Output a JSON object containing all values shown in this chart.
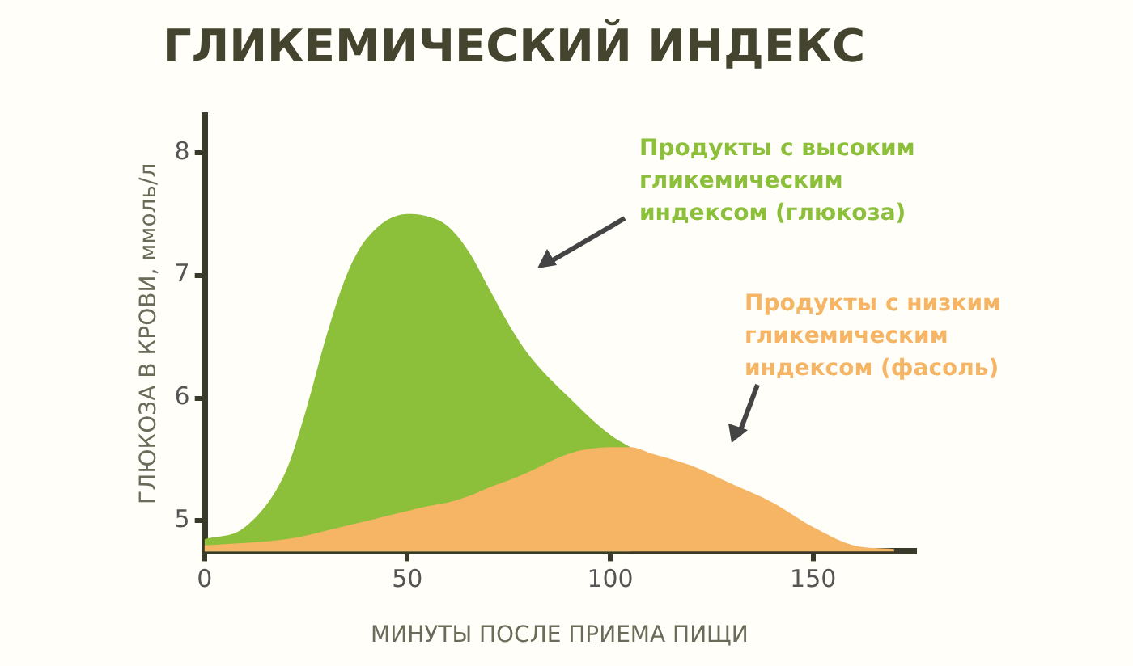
{
  "chart_data": {
    "type": "area",
    "title": "ГЛИКЕМИЧЕСКИЙ ИНДЕКС",
    "xlabel": "МИНУТЫ ПОСЛЕ ПРИЕМА ПИЩИ",
    "ylabel": "ГЛЮКОЗА В КРОВИ, ммоль/л",
    "x": [
      0,
      10,
      20,
      25,
      30,
      35,
      40,
      50,
      55,
      60,
      65,
      70,
      75,
      80,
      90,
      100,
      105,
      110,
      120,
      130,
      140,
      150,
      160,
      170
    ],
    "series": [
      {
        "name": "Продукты с высоким гликемическим индексом (глюкоза)",
        "color": "#8cbf3a",
        "values": [
          4.85,
          4.95,
          5.4,
          5.9,
          6.5,
          7.0,
          7.3,
          7.5,
          7.48,
          7.4,
          7.2,
          6.9,
          6.6,
          6.35,
          6.0,
          5.7,
          5.6,
          null,
          null,
          null,
          null,
          null,
          null,
          null
        ]
      },
      {
        "name": "Продукты с низким гликемическим индексом (фасоль)",
        "color": "#f5b565",
        "values": [
          4.8,
          4.82,
          4.85,
          4.88,
          4.92,
          4.96,
          5.0,
          5.08,
          5.12,
          5.15,
          5.2,
          5.27,
          5.33,
          5.4,
          5.55,
          5.6,
          5.6,
          5.55,
          5.45,
          5.3,
          5.15,
          4.95,
          4.8,
          4.77
        ]
      }
    ],
    "xlim": [
      0,
      175
    ],
    "ylim": [
      4.75,
      8.3
    ],
    "xticks": [
      0,
      50,
      100,
      150
    ],
    "yticks": [
      5,
      6,
      7,
      8
    ],
    "grid": false,
    "legend": false,
    "marker": "none"
  }
}
